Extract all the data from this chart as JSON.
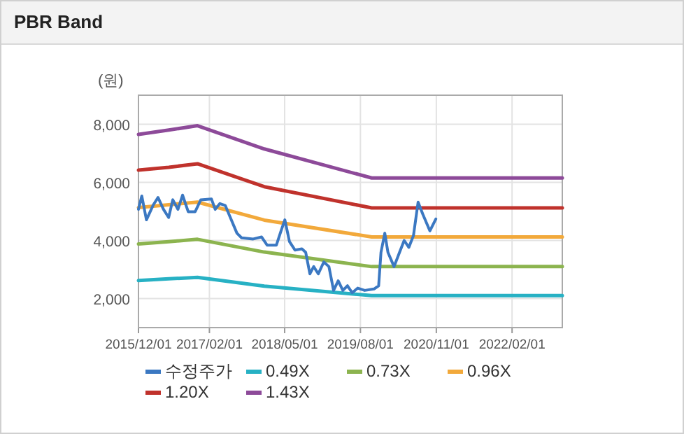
{
  "chart_data": {
    "type": "line",
    "title": "PBR Band",
    "ylabel": "(원)",
    "xlim": [
      "2015-12-01",
      "2022-12-01"
    ],
    "xticks": [
      {
        "value": "2015-12-01",
        "label": "2015/12/01"
      },
      {
        "value": "2017-02-01",
        "label": "2017/02/01"
      },
      {
        "value": "2018-05-01",
        "label": "2018/05/01"
      },
      {
        "value": "2019-08-01",
        "label": "2019/08/01"
      },
      {
        "value": "2020-11-01",
        "label": "2020/11/01"
      },
      {
        "value": "2022-02-01",
        "label": "2022/02/01"
      }
    ],
    "ylim": [
      1000,
      9000
    ],
    "yticks": [
      {
        "value": 2000,
        "label": "2,000"
      },
      {
        "value": 4000,
        "label": "4,000"
      },
      {
        "value": 6000,
        "label": "6,000"
      },
      {
        "value": 8000,
        "label": "8,000"
      }
    ],
    "grid": true,
    "legend": "bottom",
    "series": [
      {
        "name": "수정주가",
        "color": "#3b78c2",
        "x": [
          "2015-12-01",
          "2015-12-21",
          "2016-01-18",
          "2016-02-29",
          "2016-03-28",
          "2016-04-30",
          "2016-05-31",
          "2016-06-25",
          "2016-07-26",
          "2016-08-23",
          "2016-09-26",
          "2016-11-07",
          "2016-12-11",
          "2017-02-13",
          "2017-03-08",
          "2017-04-05",
          "2017-05-08",
          "2017-06-05",
          "2017-07-17",
          "2017-08-14",
          "2017-10-23",
          "2017-12-13",
          "2018-01-15",
          "2018-03-12",
          "2018-04-09",
          "2018-05-02",
          "2018-05-30",
          "2018-07-02",
          "2018-08-13",
          "2018-09-05",
          "2018-09-30",
          "2018-10-23",
          "2018-11-20",
          "2018-12-23",
          "2019-01-23",
          "2019-02-20",
          "2019-03-20",
          "2019-04-17",
          "2019-05-15",
          "2019-06-12",
          "2019-07-16",
          "2019-08-27",
          "2019-10-22",
          "2019-11-19",
          "2019-12-03",
          "2019-12-26",
          "2020-01-14",
          "2020-02-20",
          "2020-03-24",
          "2020-04-21",
          "2020-05-19",
          "2020-06-16",
          "2020-07-14",
          "2020-08-11",
          "2020-09-23",
          "2020-10-29"
        ],
        "values": [
          5070,
          5530,
          4710,
          5230,
          5480,
          5070,
          4790,
          5400,
          5070,
          5560,
          4990,
          4990,
          5400,
          5430,
          5070,
          5270,
          5200,
          4820,
          4250,
          4090,
          4050,
          4120,
          3840,
          3840,
          4330,
          4710,
          3960,
          3670,
          3710,
          3590,
          2850,
          3100,
          2850,
          3260,
          3100,
          2280,
          2610,
          2280,
          2440,
          2200,
          2360,
          2280,
          2330,
          2440,
          3590,
          4250,
          3590,
          3100,
          3590,
          4000,
          3760,
          4170,
          5320,
          4910,
          4330,
          4740
        ]
      },
      {
        "name": "0.49X",
        "color": "#27b1c4",
        "x": [
          "2015-12-01",
          "2016-06-01",
          "2016-11-21",
          "2017-12-29",
          "2019-10-08",
          "2022-12-01"
        ],
        "values": [
          2620,
          2680,
          2730,
          2430,
          2100,
          2100
        ]
      },
      {
        "name": "0.73X",
        "color": "#8cb44f",
        "x": [
          "2015-12-01",
          "2016-06-01",
          "2016-11-21",
          "2017-12-29",
          "2019-10-08",
          "2022-12-01"
        ],
        "values": [
          3880,
          3960,
          4040,
          3600,
          3100,
          3100
        ]
      },
      {
        "name": "0.96X",
        "color": "#f2a93b",
        "x": [
          "2015-12-01",
          "2016-06-01",
          "2016-11-21",
          "2017-12-29",
          "2019-10-08",
          "2022-12-01"
        ],
        "values": [
          5130,
          5230,
          5320,
          4700,
          4120,
          4120
        ]
      },
      {
        "name": "1.20X",
        "color": "#c0322c",
        "x": [
          "2015-12-01",
          "2016-06-01",
          "2016-11-21",
          "2017-12-29",
          "2019-10-08",
          "2022-12-01"
        ],
        "values": [
          6420,
          6520,
          6640,
          5850,
          5120,
          5120
        ]
      },
      {
        "name": "1.43X",
        "color": "#8d4a99",
        "x": [
          "2015-12-01",
          "2016-06-01",
          "2016-11-21",
          "2017-12-29",
          "2019-10-08",
          "2022-12-01"
        ],
        "values": [
          7650,
          7800,
          7950,
          7150,
          6150,
          6150
        ]
      }
    ]
  }
}
